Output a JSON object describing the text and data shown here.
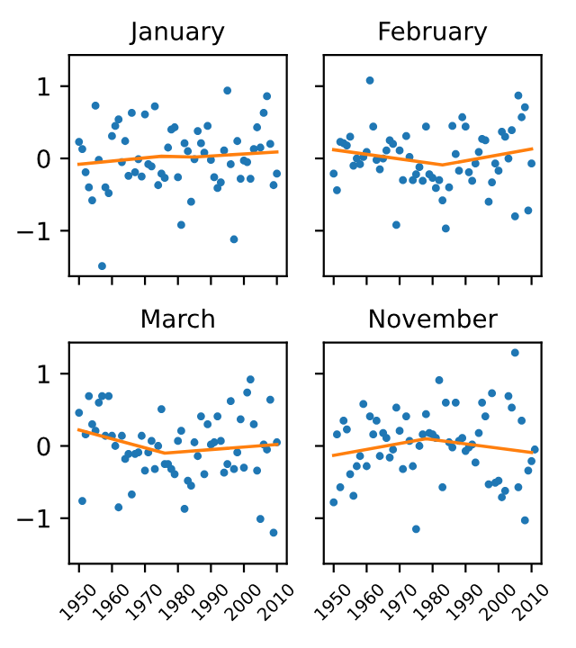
{
  "chart_data": [
    {
      "type": "scatter",
      "title": "January",
      "xlim": [
        1947,
        2013
      ],
      "xticks": [
        1950,
        1960,
        1970,
        1980,
        1990,
        2000,
        2010
      ],
      "ylim": [
        -1.63,
        1.43
      ],
      "yticks": [
        -1,
        0,
        1
      ],
      "tick_labels": "y",
      "grid": false,
      "legend": false,
      "series": [
        {
          "color": "#1f77b4",
          "x": [
            1950,
            1951,
            1952,
            1953,
            1954,
            1955,
            1956,
            1957,
            1958,
            1959,
            1960,
            1961,
            1962,
            1963,
            1964,
            1965,
            1966,
            1967,
            1968,
            1969,
            1970,
            1971,
            1972,
            1973,
            1974,
            1975,
            1976,
            1977,
            1978,
            1979,
            1980,
            1981,
            1982,
            1983,
            1984,
            1985,
            1986,
            1987,
            1988,
            1989,
            1990,
            1991,
            1992,
            1993,
            1994,
            1995,
            1996,
            1997,
            1998,
            1999,
            2000,
            2001,
            2002,
            2003,
            2004,
            2005,
            2006,
            2007,
            2008,
            2009,
            2010
          ],
          "values": [
            0.23,
            0.13,
            -0.19,
            -0.4,
            -0.58,
            0.73,
            -0.02,
            -1.49,
            -0.4,
            -0.48,
            0.31,
            0.45,
            0.54,
            -0.05,
            0.24,
            -0.24,
            0.63,
            -0.19,
            -0.01,
            -0.25,
            0.61,
            -0.08,
            -0.11,
            0.72,
            -0.37,
            -0.21,
            -0.27,
            0.15,
            0.4,
            0.43,
            -0.26,
            -0.92,
            0.21,
            0.1,
            -0.6,
            -0.01,
            0.38,
            0.21,
            0.08,
            0.45,
            -0.02,
            -0.26,
            -0.41,
            -0.33,
            0.11,
            0.94,
            -0.08,
            -1.12,
            0.24,
            -0.28,
            -0.03,
            -0.05,
            -0.28,
            0.13,
            0.43,
            0.15,
            0.63,
            0.86,
            0.2,
            -0.37,
            -0.21
          ]
        },
        {
          "type": "line",
          "color": "#ff7f0e",
          "x": [
            1950,
            1975,
            1985,
            2010
          ],
          "values": [
            -0.08,
            0.03,
            0.02,
            0.09
          ]
        }
      ]
    },
    {
      "type": "scatter",
      "title": "February",
      "xlim": [
        1947,
        2013
      ],
      "xticks": [
        1950,
        1960,
        1970,
        1980,
        1990,
        2000,
        2010
      ],
      "ylim": [
        -1.63,
        1.43
      ],
      "yticks": [
        -1,
        0,
        1
      ],
      "tick_labels": false,
      "grid": false,
      "legend": false,
      "series": [
        {
          "color": "#1f77b4",
          "x": [
            1950,
            1951,
            1952,
            1953,
            1954,
            1955,
            1956,
            1957,
            1958,
            1959,
            1960,
            1961,
            1962,
            1963,
            1964,
            1965,
            1966,
            1967,
            1968,
            1969,
            1970,
            1971,
            1972,
            1973,
            1974,
            1975,
            1976,
            1977,
            1978,
            1979,
            1980,
            1981,
            1982,
            1983,
            1984,
            1985,
            1986,
            1987,
            1988,
            1989,
            1990,
            1991,
            1992,
            1993,
            1994,
            1995,
            1996,
            1997,
            1998,
            1999,
            2000,
            2001,
            2002,
            2003,
            2004,
            2005,
            2006,
            2007,
            2008,
            2009,
            2010
          ],
          "values": [
            -0.21,
            -0.44,
            0.23,
            0.21,
            0.18,
            0.3,
            -0.1,
            0.0,
            -0.08,
            0.02,
            0.09,
            1.08,
            0.44,
            -0.02,
            -0.15,
            0.0,
            0.11,
            0.25,
            0.2,
            -0.92,
            0.11,
            -0.3,
            0.31,
            0.02,
            -0.3,
            -0.22,
            -0.12,
            -0.31,
            0.44,
            -0.22,
            -0.27,
            -0.41,
            -0.3,
            -0.58,
            -0.97,
            -0.4,
            0.45,
            0.06,
            -0.17,
            0.57,
            0.44,
            -0.19,
            -0.31,
            -0.07,
            0.09,
            0.27,
            0.25,
            -0.6,
            -0.33,
            -0.07,
            -0.17,
            0.37,
            0.3,
            0.0,
            0.39,
            -0.8,
            0.87,
            0.57,
            0.71,
            -0.72,
            -0.07
          ]
        },
        {
          "type": "line",
          "color": "#ff7f0e",
          "x": [
            1950,
            1983,
            2010
          ],
          "values": [
            0.12,
            -0.09,
            0.13
          ]
        }
      ]
    },
    {
      "type": "scatter",
      "title": "March",
      "xlim": [
        1947,
        2013
      ],
      "xticks": [
        1950,
        1960,
        1970,
        1980,
        1990,
        2000,
        2010
      ],
      "ylim": [
        -1.63,
        1.43
      ],
      "yticks": [
        -1,
        0,
        1
      ],
      "grid": false,
      "legend": false,
      "series": [
        {
          "color": "#1f77b4",
          "x": [
            1950,
            1951,
            1952,
            1953,
            1954,
            1955,
            1956,
            1957,
            1958,
            1959,
            1960,
            1961,
            1962,
            1963,
            1964,
            1965,
            1966,
            1967,
            1968,
            1969,
            1970,
            1971,
            1972,
            1973,
            1974,
            1975,
            1976,
            1977,
            1978,
            1979,
            1980,
            1981,
            1982,
            1983,
            1984,
            1985,
            1986,
            1987,
            1988,
            1989,
            1990,
            1991,
            1992,
            1993,
            1994,
            1995,
            1996,
            1997,
            1998,
            1999,
            2000,
            2001,
            2002,
            2003,
            2004,
            2005,
            2006,
            2007,
            2008,
            2009,
            2010
          ],
          "values": [
            0.46,
            -0.76,
            0.16,
            0.69,
            0.3,
            0.21,
            0.6,
            0.69,
            0.14,
            0.69,
            0.14,
            0.0,
            -0.85,
            0.14,
            -0.18,
            -0.11,
            -0.67,
            -0.11,
            -0.09,
            0.14,
            -0.34,
            -0.09,
            0.07,
            -0.32,
            0.0,
            0.51,
            -0.25,
            -0.25,
            -0.32,
            -0.39,
            0.07,
            0.21,
            -0.87,
            -0.48,
            -0.55,
            0.05,
            -0.14,
            0.41,
            -0.39,
            0.3,
            0.02,
            0.05,
            0.41,
            0.07,
            -0.37,
            -0.25,
            0.62,
            -0.32,
            -0.09,
            0.37,
            -0.3,
            0.74,
            0.92,
            0.3,
            -0.34,
            -1.01,
            0.02,
            -0.05,
            0.64,
            -1.2,
            0.05
          ]
        },
        {
          "type": "line",
          "color": "#ff7f0e",
          "x": [
            1950,
            1976,
            2010
          ],
          "values": [
            0.22,
            -0.1,
            0.02
          ]
        }
      ]
    },
    {
      "type": "scatter",
      "title": "November",
      "xlim": [
        1947,
        2013
      ],
      "xticks": [
        1950,
        1960,
        1970,
        1980,
        1990,
        2000,
        2010
      ],
      "ylim": [
        -1.63,
        1.43
      ],
      "yticks": [
        -1,
        0,
        1
      ],
      "tick_labels": "x",
      "grid": false,
      "legend": false,
      "series": [
        {
          "color": "#1f77b4",
          "x": [
            1950,
            1951,
            1952,
            1953,
            1954,
            1955,
            1956,
            1957,
            1958,
            1959,
            1960,
            1961,
            1962,
            1963,
            1964,
            1965,
            1966,
            1967,
            1968,
            1969,
            1970,
            1971,
            1972,
            1973,
            1974,
            1975,
            1976,
            1977,
            1978,
            1979,
            1980,
            1981,
            1982,
            1983,
            1984,
            1985,
            1986,
            1987,
            1988,
            1989,
            1990,
            1991,
            1992,
            1993,
            1994,
            1995,
            1996,
            1997,
            1998,
            1999,
            2000,
            2001,
            2002,
            2003,
            2004,
            2005,
            2006,
            2007,
            2008,
            2009,
            2010,
            2011
          ],
          "values": [
            -0.78,
            0.16,
            -0.57,
            0.35,
            0.23,
            -0.39,
            -0.69,
            -0.28,
            -0.14,
            0.58,
            -0.28,
            0.41,
            0.16,
            0.35,
            -0.14,
            0.18,
            0.11,
            -0.16,
            -0.05,
            0.53,
            0.21,
            -0.32,
            0.41,
            0.07,
            -0.28,
            -1.15,
            0.0,
            0.16,
            0.44,
            0.18,
            0.16,
            0.11,
            0.91,
            -0.57,
            0.6,
            0.05,
            -0.02,
            0.6,
            0.07,
            0.11,
            -0.07,
            -0.02,
            0.02,
            -0.23,
            0.18,
            0.6,
            0.41,
            -0.53,
            0.73,
            -0.51,
            -0.48,
            -0.71,
            -0.62,
            0.69,
            0.53,
            1.29,
            -0.57,
            0.35,
            -1.03,
            -0.34,
            -0.21,
            -0.05
          ]
        },
        {
          "type": "line",
          "color": "#ff7f0e",
          "x": [
            1950,
            1978,
            2010
          ],
          "values": [
            -0.13,
            0.1,
            -0.09
          ]
        }
      ]
    }
  ]
}
